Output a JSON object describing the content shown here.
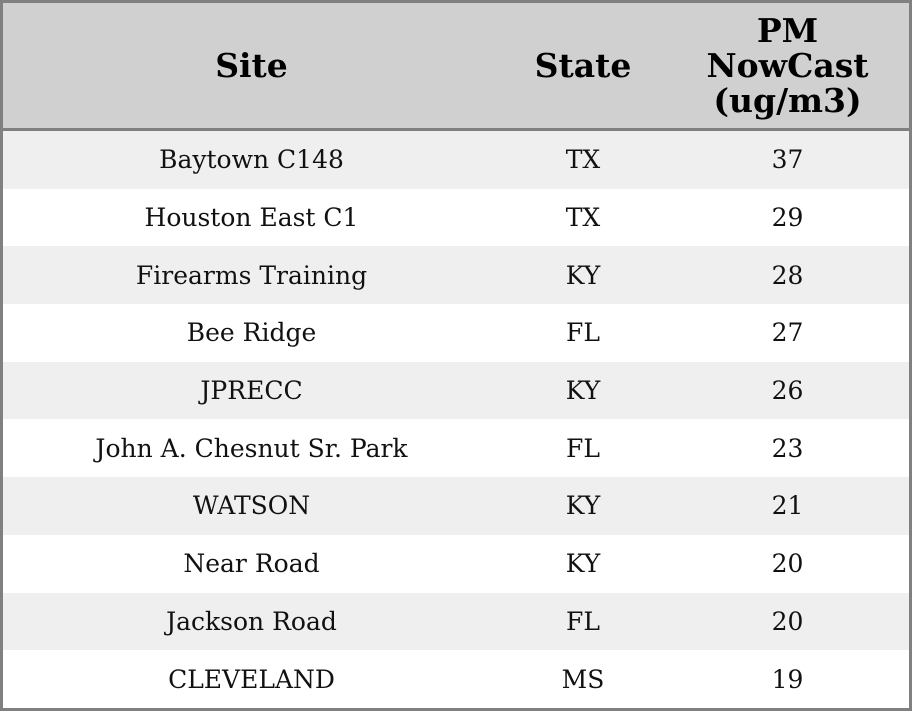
{
  "table": {
    "columns": [
      "Site",
      "State",
      "PM NowCast (ug/m3)"
    ],
    "rows": [
      [
        "Baytown C148",
        "TX",
        37
      ],
      [
        "Houston East C1",
        "TX",
        29
      ],
      [
        "Firearms Training",
        "KY",
        28
      ],
      [
        "Bee Ridge",
        "FL",
        27
      ],
      [
        "JPRECC",
        "KY",
        26
      ],
      [
        "John A. Chesnut Sr. Park",
        "FL",
        23
      ],
      [
        "WATSON",
        "KY",
        21
      ],
      [
        "Near Road",
        "KY",
        20
      ],
      [
        "Jackson Road",
        "FL",
        20
      ],
      [
        "CLEVELAND",
        "MS",
        19
      ]
    ]
  }
}
